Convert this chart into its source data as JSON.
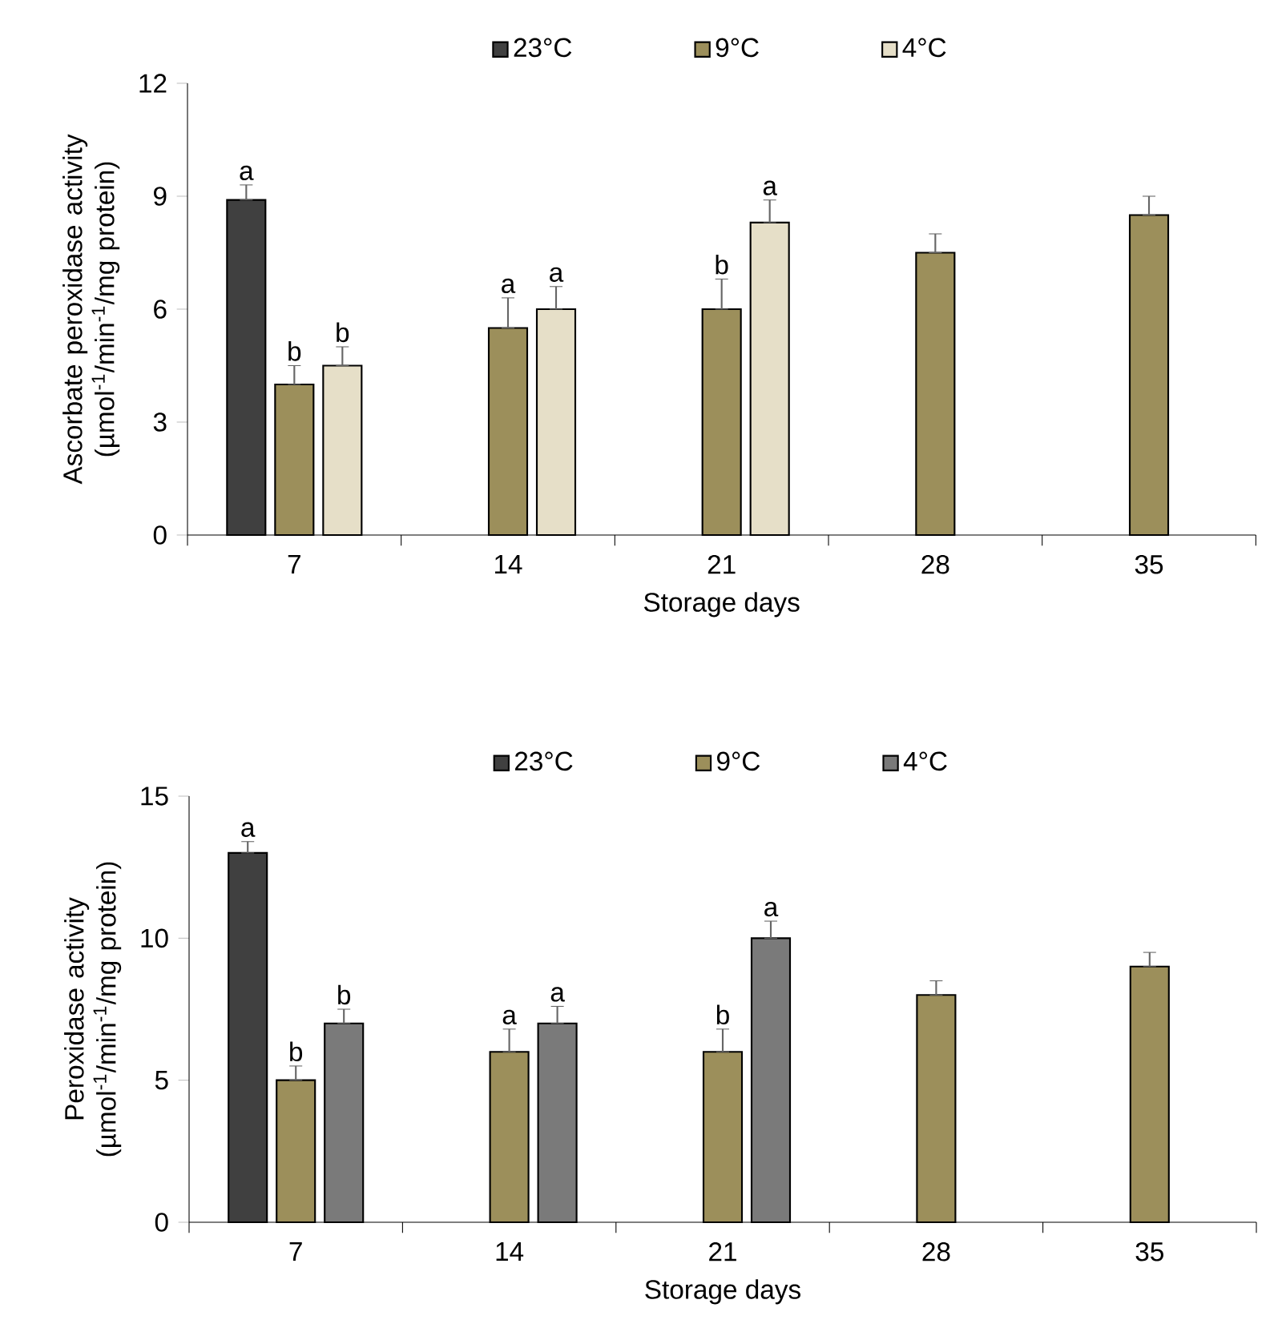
{
  "chart_data": [
    {
      "type": "bar",
      "xlabel": "Storage days",
      "ylabel": "Ascorbate peroxidase activity (µmol$^{-1}$/min$^{-1}$/mg protein)",
      "categories": [
        "7",
        "14",
        "21",
        "28",
        "35"
      ],
      "ylim": [
        0,
        12
      ],
      "yticks": [
        0,
        3,
        6,
        9,
        12
      ],
      "legend": "top",
      "series": [
        {
          "name": "23°C",
          "color": "#404040",
          "values": [
            8.9,
            null,
            null,
            null,
            null
          ],
          "errors": [
            [
              8.9,
              9.3
            ],
            null,
            null,
            null,
            null
          ]
        },
        {
          "name": "9°C",
          "color": "#9c8f5b",
          "values": [
            4.0,
            5.5,
            6.0,
            7.5,
            8.5
          ],
          "errors": [
            [
              4.0,
              4.5
            ],
            [
              5.5,
              6.3
            ],
            [
              6.0,
              6.8
            ],
            [
              7.5,
              8.0
            ],
            [
              8.5,
              9.0
            ]
          ]
        },
        {
          "name": "4°C",
          "color": "#e6dfc8",
          "values": [
            4.5,
            6.0,
            8.3,
            null,
            null
          ],
          "errors": [
            [
              4.5,
              5.0
            ],
            [
              6.0,
              6.6
            ],
            [
              8.3,
              8.9
            ],
            null,
            null
          ]
        }
      ],
      "annotations": [
        "a",
        "b",
        "b",
        "a",
        "a",
        "b",
        "a"
      ]
    },
    {
      "type": "bar",
      "xlabel": "Storage days",
      "ylabel": "Peroxidase activity (µmol$^{-1}$/min$^{-1}$/mg protein)",
      "categories": [
        "7",
        "14",
        "21",
        "28",
        "35"
      ],
      "ylim": [
        0,
        15
      ],
      "yticks": [
        0,
        5,
        10,
        15
      ],
      "legend": "top",
      "series": [
        {
          "name": "23°C",
          "color": "#404040",
          "values": [
            13,
            null,
            null,
            null,
            null
          ],
          "errors": [
            [
              13,
              13.4
            ],
            null,
            null,
            null,
            null
          ]
        },
        {
          "name": "9°C",
          "color": "#9c8f5b",
          "values": [
            5,
            6,
            6,
            8,
            9
          ],
          "errors": [
            [
              5,
              5.5
            ],
            [
              6,
              6.8
            ],
            [
              6,
              6.8
            ],
            [
              8,
              8.5
            ],
            [
              9,
              9.5
            ]
          ]
        },
        {
          "name": "4°C",
          "color": "#7a7a7a",
          "values": [
            7,
            7,
            10,
            null,
            null
          ],
          "errors": [
            [
              7,
              7.5
            ],
            [
              7,
              7.6
            ],
            [
              10,
              10.6
            ],
            null,
            null
          ]
        }
      ],
      "annotations": [
        "a",
        "b",
        "b",
        "a",
        "a",
        "b",
        "a"
      ]
    }
  ]
}
